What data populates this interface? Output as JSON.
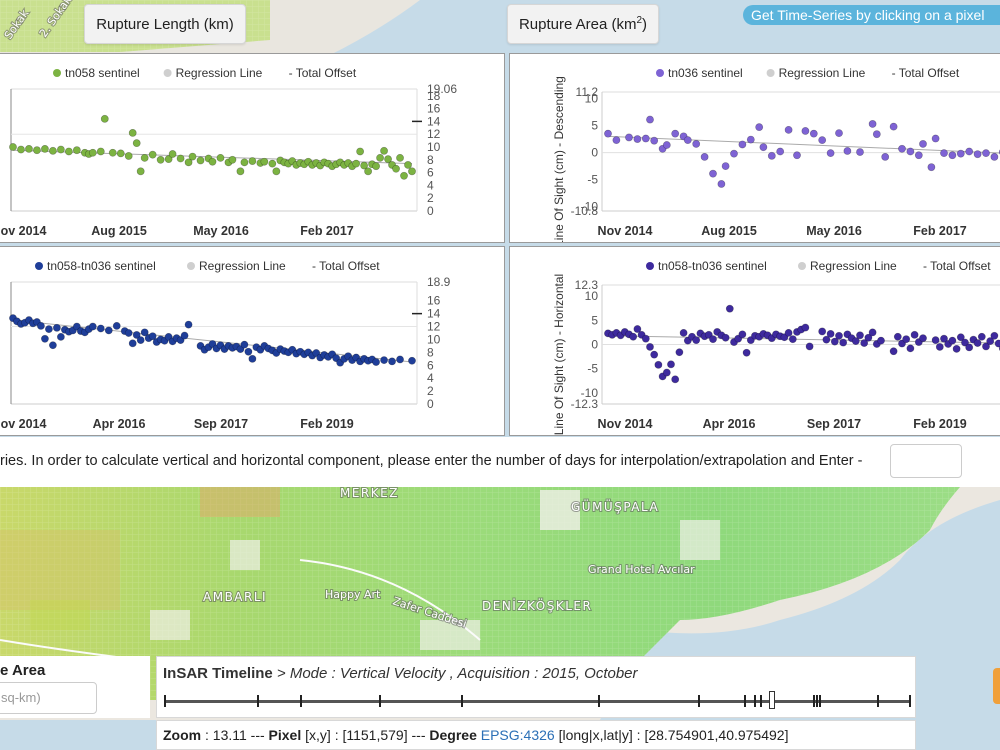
{
  "buttons": {
    "rupture_length": "Rupture Length (km)",
    "rupture_area": "Rupture Area (km",
    "rupture_area_sup": "2",
    "rupture_area_close": ")",
    "timeseries_hint": "Get Time-Series by clicking on a pixel"
  },
  "info": {
    "text": "ries. In order to calculate vertical and horizontal component, please enter the number of days for interpolation/extrapolation and Enter -",
    "days_value": ""
  },
  "area": {
    "title": "e Area",
    "placeholder": "sq-km)"
  },
  "timeline": {
    "title": "InSAR Timeline",
    "mode_text": " > Mode : Vertical Velocity , Acquisition : 2015, October",
    "tick_fractions": [
      0.0,
      0.125,
      0.183,
      0.288,
      0.399,
      0.583,
      0.717,
      0.778,
      0.792,
      0.8,
      0.871,
      0.875,
      0.879,
      0.957,
      1.0
    ],
    "handle_fraction": 0.815
  },
  "status": {
    "zoom_label": "Zoom",
    "zoom_value": " : 13.11 --- ",
    "pixel_label": "Pixel",
    "pixel_value": " [x,y] : [1151,579] --- ",
    "degree_label": "Degree",
    "epsg_link": "EPSG:4326",
    "coords": " [long|x,lat|y] : [28.754901,40.975492]"
  },
  "map": {
    "labels": [
      "MERKEZ",
      "GÜMÜŞPALA",
      "Grand Hotel Avcılar",
      "AMBARLI",
      "Happy Art",
      "Zafer Caddesi",
      "DENİZKÖŞKLER",
      "Sokak",
      "2. Sokak"
    ]
  },
  "chart_data": [
    {
      "type": "scatter",
      "legend": [
        "tn058 sentinel",
        "Regression Line",
        "Total Offset"
      ],
      "ylabel": "",
      "x_ticks": [
        "Nov 2014",
        "Aug 2015",
        "May 2016",
        "Feb 2017"
      ],
      "y_ticks_right": [
        "0",
        "2",
        "4",
        "6",
        "8",
        "10",
        "12",
        "14",
        "16",
        "18",
        "19.06"
      ],
      "ylim": [
        0,
        19.06
      ],
      "offset_mark": 14,
      "color": "#7cb342",
      "regression": [
        9.5,
        7.4
      ],
      "points": [
        [
          0.0,
          10
        ],
        [
          0.02,
          9.6
        ],
        [
          0.04,
          9.7
        ],
        [
          0.06,
          9.5
        ],
        [
          0.08,
          9.7
        ],
        [
          0.1,
          9.4
        ],
        [
          0.12,
          9.6
        ],
        [
          0.14,
          9.3
        ],
        [
          0.16,
          9.5
        ],
        [
          0.18,
          9.1
        ],
        [
          0.19,
          8.9
        ],
        [
          0.2,
          9.1
        ],
        [
          0.22,
          9.3
        ],
        [
          0.23,
          14.4
        ],
        [
          0.25,
          9.1
        ],
        [
          0.27,
          9.0
        ],
        [
          0.29,
          8.6
        ],
        [
          0.3,
          12.2
        ],
        [
          0.31,
          10.6
        ],
        [
          0.32,
          6.2
        ],
        [
          0.33,
          8.3
        ],
        [
          0.35,
          8.8
        ],
        [
          0.37,
          8.0
        ],
        [
          0.39,
          8.1
        ],
        [
          0.4,
          8.9
        ],
        [
          0.42,
          8.2
        ],
        [
          0.44,
          7.6
        ],
        [
          0.45,
          8.5
        ],
        [
          0.47,
          7.9
        ],
        [
          0.49,
          8.2
        ],
        [
          0.5,
          7.7
        ],
        [
          0.52,
          8.3
        ],
        [
          0.54,
          7.6
        ],
        [
          0.55,
          8.0
        ],
        [
          0.57,
          6.2
        ],
        [
          0.58,
          7.6
        ],
        [
          0.6,
          7.8
        ],
        [
          0.62,
          7.5
        ],
        [
          0.63,
          7.7
        ],
        [
          0.65,
          7.4
        ],
        [
          0.66,
          6.2
        ],
        [
          0.67,
          7.9
        ],
        [
          0.68,
          7.6
        ],
        [
          0.69,
          7.4
        ],
        [
          0.7,
          7.8
        ],
        [
          0.71,
          7.2
        ],
        [
          0.72,
          7.5
        ],
        [
          0.73,
          7.3
        ],
        [
          0.74,
          7.7
        ],
        [
          0.75,
          7.2
        ],
        [
          0.76,
          7.5
        ],
        [
          0.77,
          7.1
        ],
        [
          0.78,
          7.6
        ],
        [
          0.79,
          7.4
        ],
        [
          0.8,
          7.0
        ],
        [
          0.81,
          7.3
        ],
        [
          0.82,
          7.6
        ],
        [
          0.83,
          7.2
        ],
        [
          0.84,
          7.5
        ],
        [
          0.85,
          7.0
        ],
        [
          0.86,
          7.4
        ],
        [
          0.87,
          9.3
        ],
        [
          0.88,
          7.1
        ],
        [
          0.89,
          6.2
        ],
        [
          0.9,
          7.3
        ],
        [
          0.91,
          7.0
        ],
        [
          0.92,
          8.3
        ],
        [
          0.93,
          9.4
        ],
        [
          0.94,
          8.1
        ],
        [
          0.95,
          7.2
        ],
        [
          0.96,
          6.6
        ],
        [
          0.97,
          8.3
        ],
        [
          0.98,
          5.5
        ],
        [
          0.99,
          7.2
        ],
        [
          1.0,
          6.2
        ]
      ]
    },
    {
      "type": "scatter",
      "legend": [
        "tn036 sentinel",
        "Regression Line",
        "Total Offset"
      ],
      "ylabel": "Line Of Sight (cm) - Descending",
      "x_ticks": [
        "Nov 2014",
        "Aug 2015",
        "May 2016",
        "Feb 2017"
      ],
      "y_ticks_left": [
        "-10.8",
        "-10",
        "-5",
        "0",
        "5",
        "10",
        "11.2"
      ],
      "ylim": [
        -10.8,
        11.2
      ],
      "color": "#7e63d4",
      "regression": [
        3.0,
        -0.3
      ],
      "points": [
        [
          0.0,
          3.5
        ],
        [
          0.02,
          2.3
        ],
        [
          0.05,
          2.8
        ],
        [
          0.07,
          2.5
        ],
        [
          0.09,
          2.6
        ],
        [
          0.1,
          6.1
        ],
        [
          0.11,
          2.2
        ],
        [
          0.13,
          0.7
        ],
        [
          0.14,
          1.4
        ],
        [
          0.16,
          3.5
        ],
        [
          0.18,
          3.0
        ],
        [
          0.19,
          2.3
        ],
        [
          0.21,
          1.6
        ],
        [
          0.23,
          -0.8
        ],
        [
          0.25,
          -3.9
        ],
        [
          0.27,
          -5.8
        ],
        [
          0.28,
          -2.5
        ],
        [
          0.3,
          -0.2
        ],
        [
          0.32,
          1.5
        ],
        [
          0.34,
          2.4
        ],
        [
          0.36,
          4.7
        ],
        [
          0.37,
          1.0
        ],
        [
          0.39,
          -0.6
        ],
        [
          0.41,
          0.2
        ],
        [
          0.43,
          4.2
        ],
        [
          0.45,
          -0.5
        ],
        [
          0.47,
          4.0
        ],
        [
          0.49,
          3.5
        ],
        [
          0.51,
          2.3
        ],
        [
          0.53,
          -0.1
        ],
        [
          0.55,
          3.6
        ],
        [
          0.57,
          0.3
        ],
        [
          0.6,
          0.1
        ],
        [
          0.63,
          5.3
        ],
        [
          0.64,
          3.4
        ],
        [
          0.66,
          -0.8
        ],
        [
          0.68,
          4.8
        ],
        [
          0.7,
          0.7
        ],
        [
          0.72,
          0.2
        ],
        [
          0.74,
          -0.5
        ],
        [
          0.75,
          1.6
        ],
        [
          0.77,
          -2.7
        ],
        [
          0.78,
          2.6
        ],
        [
          0.8,
          -0.1
        ],
        [
          0.82,
          -0.5
        ],
        [
          0.84,
          -0.2
        ],
        [
          0.86,
          0.2
        ],
        [
          0.88,
          -0.3
        ],
        [
          0.9,
          -0.1
        ],
        [
          0.92,
          -0.8
        ],
        [
          0.94,
          0.1
        ],
        [
          0.96,
          0.3
        ],
        [
          0.98,
          -0.3
        ],
        [
          1.0,
          0.1
        ]
      ]
    },
    {
      "type": "scatter",
      "legend": [
        "tn058-tn036 sentinel",
        "Regression Line",
        "Total Offset"
      ],
      "ylabel": "",
      "x_ticks": [
        "Nov 2014",
        "Apr 2016",
        "Sep 2017",
        "Feb 2019"
      ],
      "y_ticks_right": [
        "0",
        "2",
        "4",
        "6",
        "8",
        "10",
        "12",
        "14",
        "16",
        "18.9"
      ],
      "ylim": [
        0,
        18.9
      ],
      "offset_mark": 14,
      "color": "#1f3e99",
      "regression": [
        13.0,
        6.5
      ],
      "points": [
        [
          0.0,
          13.3
        ],
        [
          0.01,
          12.8
        ],
        [
          0.02,
          12.4
        ],
        [
          0.03,
          12.6
        ],
        [
          0.04,
          13.0
        ],
        [
          0.05,
          12.5
        ],
        [
          0.06,
          12.7
        ],
        [
          0.07,
          12.1
        ],
        [
          0.08,
          10.1
        ],
        [
          0.09,
          11.6
        ],
        [
          0.1,
          9.1
        ],
        [
          0.11,
          11.8
        ],
        [
          0.12,
          10.4
        ],
        [
          0.13,
          11.5
        ],
        [
          0.14,
          11.2
        ],
        [
          0.15,
          11.4
        ],
        [
          0.16,
          12.0
        ],
        [
          0.17,
          11.3
        ],
        [
          0.18,
          11.1
        ],
        [
          0.19,
          11.6
        ],
        [
          0.2,
          12.0
        ],
        [
          0.22,
          11.7
        ],
        [
          0.24,
          11.4
        ],
        [
          0.26,
          12.1
        ],
        [
          0.28,
          11.3
        ],
        [
          0.29,
          11.0
        ],
        [
          0.3,
          9.4
        ],
        [
          0.31,
          10.7
        ],
        [
          0.32,
          9.9
        ],
        [
          0.33,
          11.1
        ],
        [
          0.34,
          10.2
        ],
        [
          0.35,
          10.5
        ],
        [
          0.36,
          9.6
        ],
        [
          0.37,
          10.0
        ],
        [
          0.38,
          9.8
        ],
        [
          0.39,
          10.4
        ],
        [
          0.4,
          9.7
        ],
        [
          0.41,
          10.2
        ],
        [
          0.42,
          9.9
        ],
        [
          0.43,
          10.6
        ],
        [
          0.44,
          12.3
        ],
        [
          0.47,
          9.0
        ],
        [
          0.48,
          8.4
        ],
        [
          0.49,
          8.8
        ],
        [
          0.5,
          9.3
        ],
        [
          0.51,
          8.6
        ],
        [
          0.52,
          9.1
        ],
        [
          0.53,
          8.5
        ],
        [
          0.54,
          9.0
        ],
        [
          0.55,
          8.7
        ],
        [
          0.56,
          8.9
        ],
        [
          0.57,
          8.5
        ],
        [
          0.58,
          9.2
        ],
        [
          0.59,
          8.1
        ],
        [
          0.6,
          7.0
        ],
        [
          0.61,
          8.8
        ],
        [
          0.62,
          8.4
        ],
        [
          0.63,
          9.0
        ],
        [
          0.64,
          8.6
        ],
        [
          0.65,
          8.3
        ],
        [
          0.66,
          7.9
        ],
        [
          0.67,
          8.5
        ],
        [
          0.68,
          8.2
        ],
        [
          0.69,
          8.0
        ],
        [
          0.7,
          8.4
        ],
        [
          0.71,
          7.8
        ],
        [
          0.72,
          8.1
        ],
        [
          0.73,
          7.7
        ],
        [
          0.74,
          8.0
        ],
        [
          0.75,
          7.5
        ],
        [
          0.76,
          7.9
        ],
        [
          0.77,
          7.2
        ],
        [
          0.78,
          7.6
        ],
        [
          0.79,
          7.3
        ],
        [
          0.8,
          7.7
        ],
        [
          0.81,
          7.1
        ],
        [
          0.82,
          6.4
        ],
        [
          0.83,
          7.0
        ],
        [
          0.84,
          7.4
        ],
        [
          0.85,
          6.8
        ],
        [
          0.86,
          7.2
        ],
        [
          0.87,
          6.6
        ],
        [
          0.88,
          7.0
        ],
        [
          0.89,
          6.7
        ],
        [
          0.9,
          6.9
        ],
        [
          0.91,
          6.5
        ],
        [
          0.93,
          6.8
        ],
        [
          0.95,
          6.6
        ],
        [
          0.97,
          6.9
        ],
        [
          1.0,
          6.7
        ]
      ]
    },
    {
      "type": "scatter",
      "legend": [
        "tn058-tn036 sentinel",
        "Regression Line",
        "Total Offset"
      ],
      "ylabel": "Line Of Sight (cm) - Horizontal",
      "x_ticks": [
        "Nov 2014",
        "Apr 2016",
        "Sep 2017",
        "Feb 2019"
      ],
      "y_ticks_left": [
        "-12.3",
        "-10",
        "-5",
        "0",
        "5",
        "10",
        "12.3"
      ],
      "ylim": [
        -12.3,
        12.3
      ],
      "color": "#3e2a9e",
      "regression": [
        1.8,
        0.2
      ],
      "points": [
        [
          0.0,
          2.3
        ],
        [
          0.01,
          2.0
        ],
        [
          0.02,
          2.4
        ],
        [
          0.03,
          1.9
        ],
        [
          0.04,
          2.6
        ],
        [
          0.05,
          2.1
        ],
        [
          0.06,
          1.6
        ],
        [
          0.07,
          3.2
        ],
        [
          0.08,
          2.0
        ],
        [
          0.09,
          1.2
        ],
        [
          0.1,
          -0.5
        ],
        [
          0.11,
          -2.1
        ],
        [
          0.12,
          -4.2
        ],
        [
          0.13,
          -6.6
        ],
        [
          0.14,
          -5.8
        ],
        [
          0.15,
          -4.1
        ],
        [
          0.16,
          -7.2
        ],
        [
          0.17,
          -1.6
        ],
        [
          0.18,
          2.4
        ],
        [
          0.19,
          0.8
        ],
        [
          0.2,
          1.6
        ],
        [
          0.21,
          0.9
        ],
        [
          0.22,
          2.3
        ],
        [
          0.23,
          1.7
        ],
        [
          0.24,
          2.0
        ],
        [
          0.25,
          1.1
        ],
        [
          0.26,
          2.6
        ],
        [
          0.27,
          1.9
        ],
        [
          0.28,
          1.4
        ],
        [
          0.29,
          7.4
        ],
        [
          0.3,
          0.5
        ],
        [
          0.31,
          1.2
        ],
        [
          0.32,
          2.1
        ],
        [
          0.33,
          -1.7
        ],
        [
          0.34,
          0.9
        ],
        [
          0.35,
          1.8
        ],
        [
          0.36,
          1.6
        ],
        [
          0.37,
          2.2
        ],
        [
          0.38,
          1.9
        ],
        [
          0.39,
          1.3
        ],
        [
          0.4,
          2.1
        ],
        [
          0.41,
          1.7
        ],
        [
          0.42,
          1.5
        ],
        [
          0.43,
          2.4
        ],
        [
          0.44,
          1.1
        ],
        [
          0.45,
          2.6
        ],
        [
          0.46,
          3.1
        ],
        [
          0.47,
          3.5
        ],
        [
          0.48,
          -0.4
        ],
        [
          0.51,
          2.7
        ],
        [
          0.52,
          1.0
        ],
        [
          0.53,
          2.2
        ],
        [
          0.54,
          0.6
        ],
        [
          0.55,
          1.8
        ],
        [
          0.56,
          0.4
        ],
        [
          0.57,
          2.1
        ],
        [
          0.58,
          1.3
        ],
        [
          0.59,
          0.7
        ],
        [
          0.6,
          1.9
        ],
        [
          0.61,
          0.3
        ],
        [
          0.62,
          1.4
        ],
        [
          0.63,
          2.5
        ],
        [
          0.64,
          0.1
        ],
        [
          0.65,
          0.8
        ],
        [
          0.68,
          -1.4
        ],
        [
          0.69,
          1.6
        ],
        [
          0.7,
          0.2
        ],
        [
          0.71,
          1.1
        ],
        [
          0.72,
          -0.8
        ],
        [
          0.73,
          2.0
        ],
        [
          0.74,
          0.5
        ],
        [
          0.75,
          1.3
        ],
        [
          0.78,
          0.9
        ],
        [
          0.79,
          -0.5
        ],
        [
          0.8,
          1.2
        ],
        [
          0.81,
          0.1
        ],
        [
          0.82,
          0.8
        ],
        [
          0.83,
          -0.9
        ],
        [
          0.84,
          1.5
        ],
        [
          0.85,
          0.4
        ],
        [
          0.86,
          -0.6
        ],
        [
          0.87,
          1.0
        ],
        [
          0.88,
          0.3
        ],
        [
          0.89,
          1.6
        ],
        [
          0.9,
          -0.4
        ],
        [
          0.91,
          0.7
        ],
        [
          0.92,
          1.8
        ],
        [
          0.93,
          0.2
        ],
        [
          0.94,
          -0.8
        ],
        [
          0.95,
          1.1
        ],
        [
          0.96,
          0.5
        ],
        [
          0.97,
          -0.3
        ],
        [
          0.98,
          1.5
        ],
        [
          0.99,
          0.2
        ],
        [
          1.0,
          2.2
        ]
      ]
    }
  ]
}
